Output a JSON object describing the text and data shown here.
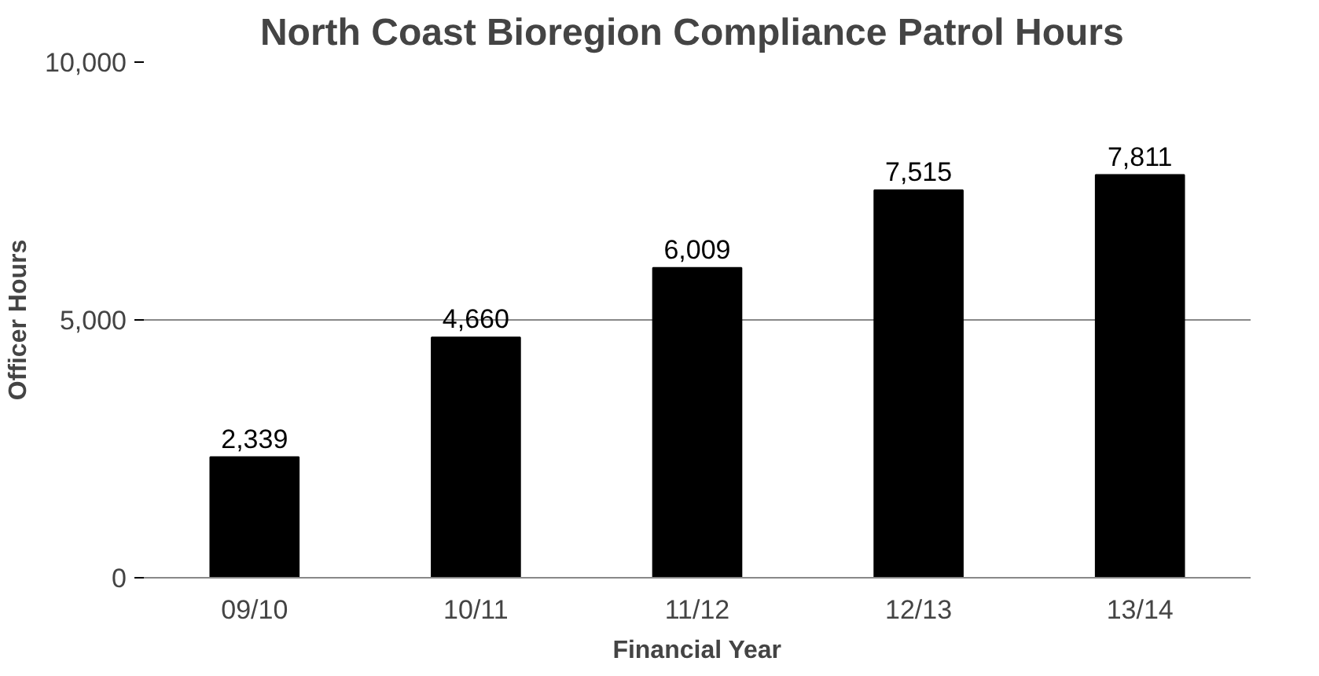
{
  "chart_data": {
    "type": "bar",
    "title": "North Coast  Bioregion Compliance Patrol Hours",
    "xlabel": "Financial Year",
    "ylabel": "Officer Hours",
    "categories": [
      "09/10",
      "10/11",
      "11/12",
      "12/13",
      "13/14"
    ],
    "values": [
      2339,
      4660,
      6009,
      7515,
      7811
    ],
    "color": "#000000",
    "ylim": [
      0,
      10000
    ],
    "yticks": [
      {
        "value": 0,
        "label": "0"
      },
      {
        "value": 5000,
        "label": "5,000"
      },
      {
        "value": 10000,
        "label": "10,000"
      }
    ],
    "value_labels": [
      "2,339",
      "4,660",
      "6,009",
      "7,515",
      "7,811"
    ],
    "grid": "y"
  }
}
